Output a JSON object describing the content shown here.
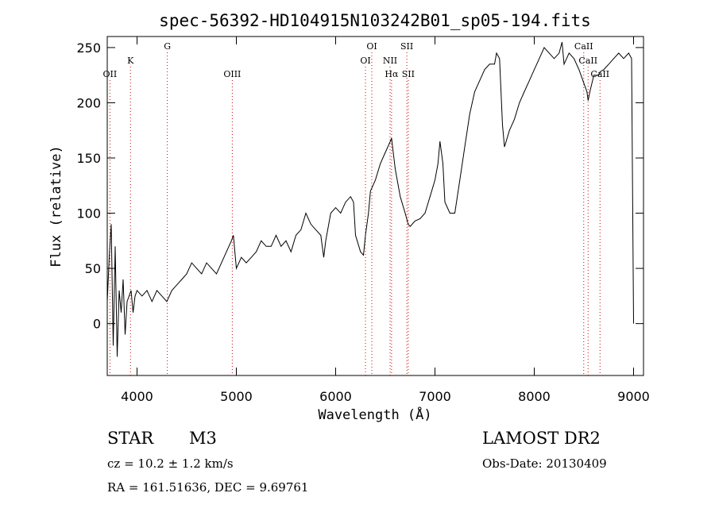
{
  "chart_data": {
    "type": "line",
    "title": "spec-56392-HD104915N103242B01_sp05-194.fits",
    "xlabel": "Wavelength (Å)",
    "ylabel": "Flux (relative)",
    "xlim": [
      3700,
      9100
    ],
    "ylim": [
      -47,
      260
    ],
    "xticks": [
      4000,
      5000,
      6000,
      7000,
      8000,
      9000
    ],
    "yticks": [
      0,
      50,
      100,
      150,
      200,
      250
    ],
    "grid": false,
    "line_color": "#000000",
    "marker_color": "#cc0000",
    "series": [
      {
        "x": [
          3700,
          3720,
          3740,
          3760,
          3780,
          3800,
          3820,
          3840,
          3860,
          3880,
          3900,
          3920,
          3940,
          3960,
          3980,
          4000,
          4050,
          4100,
          4150,
          4200,
          4250,
          4300,
          4350,
          4400,
          4450,
          4500,
          4550,
          4600,
          4650,
          4700,
          4750,
          4800,
          4850,
          4900,
          4950,
          4970,
          5000,
          5050,
          5100,
          5150,
          5200,
          5250,
          5300,
          5350,
          5400,
          5450,
          5500,
          5550,
          5600,
          5650,
          5700,
          5750,
          5800,
          5850,
          5880,
          5900,
          5950,
          6000,
          6050,
          6100,
          6150,
          6180,
          6200,
          6250,
          6280,
          6300,
          6330,
          6350,
          6400,
          6450,
          6500,
          6550,
          6563,
          6580,
          6600,
          6650,
          6700,
          6730,
          6750,
          6800,
          6850,
          6900,
          6950,
          7000,
          7030,
          7050,
          7080,
          7100,
          7150,
          7200,
          7250,
          7300,
          7350,
          7400,
          7450,
          7500,
          7550,
          7600,
          7620,
          7650,
          7680,
          7700,
          7750,
          7800,
          7850,
          7900,
          7950,
          8000,
          8050,
          8100,
          8150,
          8200,
          8250,
          8280,
          8300,
          8350,
          8400,
          8450,
          8498,
          8530,
          8542,
          8560,
          8600,
          8650,
          8662,
          8700,
          8750,
          8800,
          8850,
          8900,
          8950,
          8980,
          9000
        ],
        "y": [
          20,
          60,
          90,
          -20,
          70,
          -30,
          30,
          10,
          40,
          -10,
          20,
          25,
          30,
          10,
          25,
          30,
          25,
          30,
          20,
          30,
          25,
          20,
          30,
          35,
          40,
          45,
          55,
          50,
          45,
          55,
          50,
          45,
          55,
          65,
          75,
          80,
          50,
          60,
          55,
          60,
          65,
          75,
          70,
          70,
          80,
          70,
          75,
          65,
          80,
          85,
          100,
          90,
          85,
          80,
          60,
          75,
          100,
          105,
          100,
          110,
          115,
          110,
          80,
          65,
          62,
          80,
          100,
          120,
          130,
          145,
          155,
          165,
          168,
          155,
          140,
          115,
          100,
          90,
          88,
          93,
          95,
          100,
          115,
          130,
          145,
          165,
          145,
          110,
          100,
          100,
          130,
          160,
          190,
          210,
          220,
          230,
          235,
          235,
          245,
          240,
          180,
          160,
          175,
          185,
          200,
          210,
          220,
          230,
          240,
          250,
          245,
          240,
          245,
          255,
          235,
          245,
          240,
          230,
          218,
          210,
          202,
          210,
          225,
          225,
          228,
          230,
          235,
          240,
          245,
          240,
          245,
          240,
          0
        ]
      }
    ],
    "lines": [
      {
        "name": "OII",
        "wavelength": 3727,
        "tier": 3
      },
      {
        "name": "K",
        "wavelength": 3934,
        "tier": 2
      },
      {
        "name": "G",
        "wavelength": 4305,
        "tier": 1
      },
      {
        "name": "OIII",
        "wavelength": 4959,
        "tier": 3
      },
      {
        "name": "OI",
        "wavelength": 6300,
        "tier": 2
      },
      {
        "name": "OI",
        "wavelength": 6364,
        "tier": 1
      },
      {
        "name": "NII",
        "wavelength": 6548,
        "tier": 2
      },
      {
        "name": "Hα",
        "wavelength": 6563,
        "tier": 3
      },
      {
        "name": "SII",
        "wavelength": 6717,
        "tier": 1
      },
      {
        "name": "SII",
        "wavelength": 6731,
        "tier": 3
      },
      {
        "name": "CaII",
        "wavelength": 8498,
        "tier": 1
      },
      {
        "name": "CaII",
        "wavelength": 8542,
        "tier": 2
      },
      {
        "name": "CaII",
        "wavelength": 8662,
        "tier": 3
      }
    ]
  },
  "info": {
    "object_class": "STAR",
    "subclass": "M3",
    "cz": "cz = 10.2 ± 1.2 km/s",
    "coords": "RA = 161.51636, DEC =    9.69761",
    "survey": "LAMOST DR2",
    "obs_date": "Obs-Date: 20130409"
  }
}
